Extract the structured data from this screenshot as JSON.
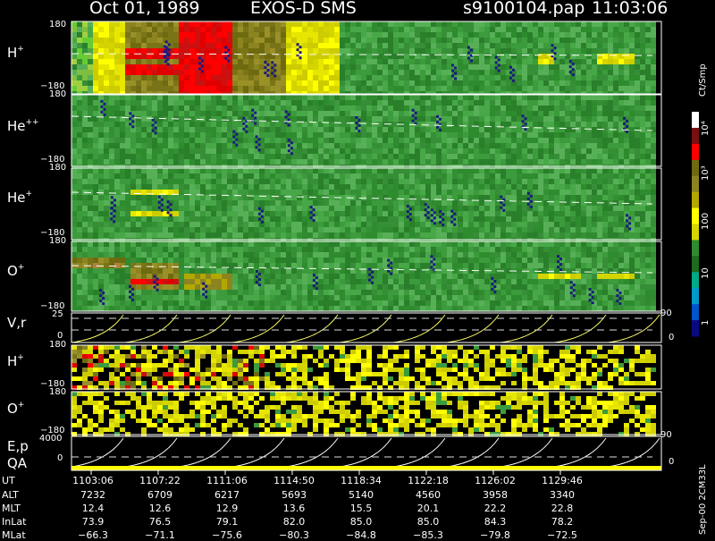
{
  "header": {
    "date": "Oct 01, 1989",
    "instrument": "EXOS-D SMS",
    "file": "s9100104.pap",
    "time": "11:03:06"
  },
  "panels": [
    {
      "label": "H",
      "sup": "+",
      "ymax": "180",
      "ymin": "−180"
    },
    {
      "label": "He",
      "sup": "++",
      "ymax": "180",
      "ymin": "−180"
    },
    {
      "label": "He",
      "sup": "+",
      "ymax": "180",
      "ymin": "−180"
    },
    {
      "label": "O",
      "sup": "+",
      "ymax": "180",
      "ymin": "−180"
    }
  ],
  "vr_panel": {
    "label": "V,r",
    "left_max": "25",
    "left_min": "0",
    "right_max": "90",
    "right_min": "0"
  },
  "mini_panels": [
    {
      "label": "H",
      "sup": "+",
      "ymax": "180",
      "ymin": "−180"
    },
    {
      "label": "O",
      "sup": "+",
      "ymax": "180",
      "ymin": "−180"
    }
  ],
  "ep_panel": {
    "label1": "E,p",
    "label2": "QA",
    "left_max": "4000",
    "left_min": "0",
    "right_max": "90",
    "right_min": "0"
  },
  "colorbar": {
    "unit": "Ct/Smp",
    "tick_labels": [
      "10⁴",
      "10³",
      "100",
      "10",
      "1"
    ],
    "colors": [
      "#ffffff",
      "#7a0f0f",
      "#ff0000",
      "#6e6a10",
      "#8c8420",
      "#b3a800",
      "#ffff00",
      "#d6d600",
      "#2e8b2e",
      "#1e6b1e",
      "#00aa88",
      "#0099cc",
      "#0055cc",
      "#0a0a80"
    ]
  },
  "footer": {
    "row_labels": [
      "UT",
      "ALT",
      "MLT",
      "InLat",
      "MLat"
    ],
    "columns": [
      {
        "ut": "1103:06",
        "alt": "7232",
        "mlt": "12.4",
        "inlat": "73.9",
        "mlat": "−66.3"
      },
      {
        "ut": "1107:22",
        "alt": "6709",
        "mlt": "12.6",
        "inlat": "76.5",
        "mlat": "−71.1"
      },
      {
        "ut": "1111:06",
        "alt": "6217",
        "mlt": "12.9",
        "inlat": "79.1",
        "mlat": "−75.6"
      },
      {
        "ut": "1114:50",
        "alt": "5693",
        "mlt": "13.6",
        "inlat": "82.0",
        "mlat": "−80.3"
      },
      {
        "ut": "1118:34",
        "alt": "5140",
        "mlt": "15.5",
        "inlat": "85.0",
        "mlat": "−84.8"
      },
      {
        "ut": "1122:18",
        "alt": "4560",
        "mlt": "20.1",
        "inlat": "85.0",
        "mlat": "−85.3"
      },
      {
        "ut": "1126:02",
        "alt": "3958",
        "mlt": "22.2",
        "inlat": "84.3",
        "mlat": "−79.8"
      },
      {
        "ut": "1129:46",
        "alt": "3340",
        "mlt": "22.8",
        "inlat": "78.2",
        "mlat": "−72.5"
      }
    ],
    "side_note": "Sep-00 2CM33L"
  },
  "chart_data": {
    "type": "heatmap",
    "x_label": "UT",
    "x_ticks": [
      "1103:06",
      "1107:22",
      "1111:06",
      "1114:50",
      "1118:34",
      "1122:18",
      "1126:02",
      "1129:46"
    ],
    "y_range": [
      -180,
      180
    ],
    "color_scale": "log",
    "color_range": [
      1,
      10000
    ],
    "panels": [
      "H+",
      "He++",
      "He+",
      "O+",
      "V,r",
      "H+",
      "O+",
      "E,p / QA"
    ]
  }
}
